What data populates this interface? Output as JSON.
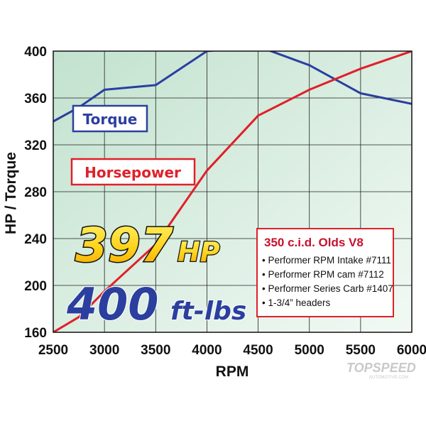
{
  "chart_data": {
    "type": "line",
    "x": [
      2500,
      2750,
      3000,
      3500,
      4000,
      4500,
      5000,
      5500,
      6000
    ],
    "series": [
      {
        "name": "Torque",
        "color": "#2b3f9e",
        "values": [
          340,
          352,
          367,
          371,
          400,
          404,
          388,
          364,
          355
        ]
      },
      {
        "name": "Horsepower",
        "color": "#e0202a",
        "values": [
          160,
          173,
          195,
          235,
          298,
          345,
          367,
          385,
          400
        ]
      }
    ],
    "xlabel": "RPM",
    "ylabel": "HP / Torque",
    "xlim": [
      2500,
      6000
    ],
    "ylim": [
      160,
      400
    ],
    "xticks": [
      2500,
      3000,
      3500,
      4000,
      4500,
      5000,
      5500,
      6000
    ],
    "yticks": [
      160,
      200,
      240,
      280,
      320,
      360,
      400
    ],
    "grid": true,
    "background_gradient": [
      "#c2e2cf",
      "#f2f9f4"
    ]
  },
  "labels": {
    "torque": "Torque",
    "horsepower": "Horsepower"
  },
  "callouts": {
    "hp_value": "397",
    "hp_unit": "HP",
    "torque_value": "400",
    "torque_unit": "ft-lbs"
  },
  "specs": {
    "title": "350 c.i.d. Olds V8",
    "items": [
      "• Performer RPM Intake #7111",
      "• Performer RPM cam #7112",
      "• Performer Series Carb #1407",
      "• 1-3/4” headers"
    ]
  },
  "watermark": {
    "text": "TOPSPEED",
    "sub": "AUTOMOTIVE.COM"
  }
}
